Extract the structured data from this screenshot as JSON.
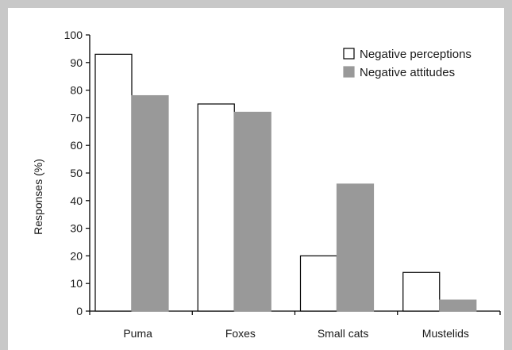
{
  "chart_data": {
    "type": "bar",
    "title": "",
    "xlabel": "",
    "ylabel": "Responses (%)",
    "ylim": [
      0,
      100
    ],
    "yticks": [
      "0",
      "10",
      "20",
      "30",
      "40",
      "50",
      "60",
      "70",
      "80",
      "90",
      "100"
    ],
    "categories": [
      "Puma",
      "Foxes",
      "Small cats",
      "Mustelids"
    ],
    "series": [
      {
        "name": "Negative perceptions",
        "color": "#ffffff",
        "stroke": "#000000",
        "values": [
          93,
          75,
          20,
          14
        ]
      },
      {
        "name": "Negative attitudes",
        "color": "#999999",
        "stroke": "#999999",
        "values": [
          78,
          72,
          46,
          4
        ]
      }
    ],
    "legend": "top-right",
    "grid": false
  },
  "frame": {
    "border_color": "#c8c8c8"
  }
}
